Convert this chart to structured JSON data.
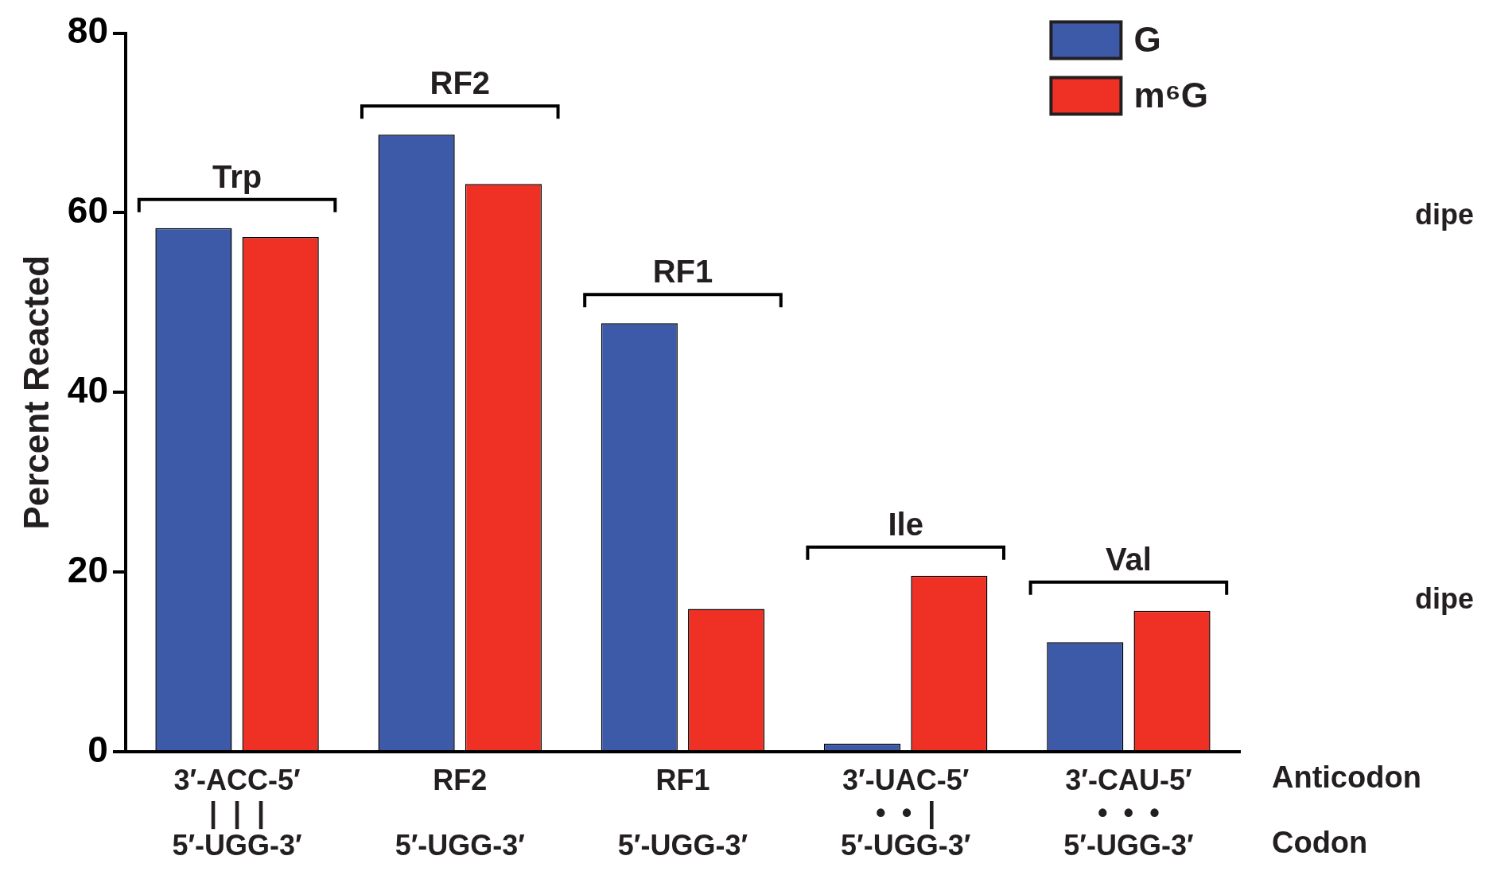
{
  "chart_data": {
    "type": "bar",
    "ylabel": "Percent Reacted",
    "categories": [
      "3′-ACC-5′\n|  |  |\n5′-UGG-3′",
      "RF2\n \n5′-UGG-3′",
      "RF1\n \n5′-UGG-3′",
      "3′-UAC-5′\n•  •  |\n5′-UGG-3′",
      "3′-CAU-5′\n•  •  •\n5′-UGG-3′"
    ],
    "series": [
      {
        "name": "G",
        "color": "#3c5aa8",
        "values": [
          58.3,
          68.7,
          47.7,
          0.9,
          12.2
        ]
      },
      {
        "name": "m⁶G",
        "color": "#ee3124",
        "values": [
          57.3,
          63.2,
          15.9,
          19.6,
          15.7
        ]
      }
    ],
    "ylim": [
      0,
      80
    ],
    "yticks": [
      0,
      20,
      40,
      60,
      80
    ],
    "legend": "top right",
    "annotations": [
      "Trp",
      "RF2",
      "RF1",
      "Ile",
      "Val",
      "Anticodon",
      "Codon",
      "dipe",
      "dipe"
    ]
  }
}
